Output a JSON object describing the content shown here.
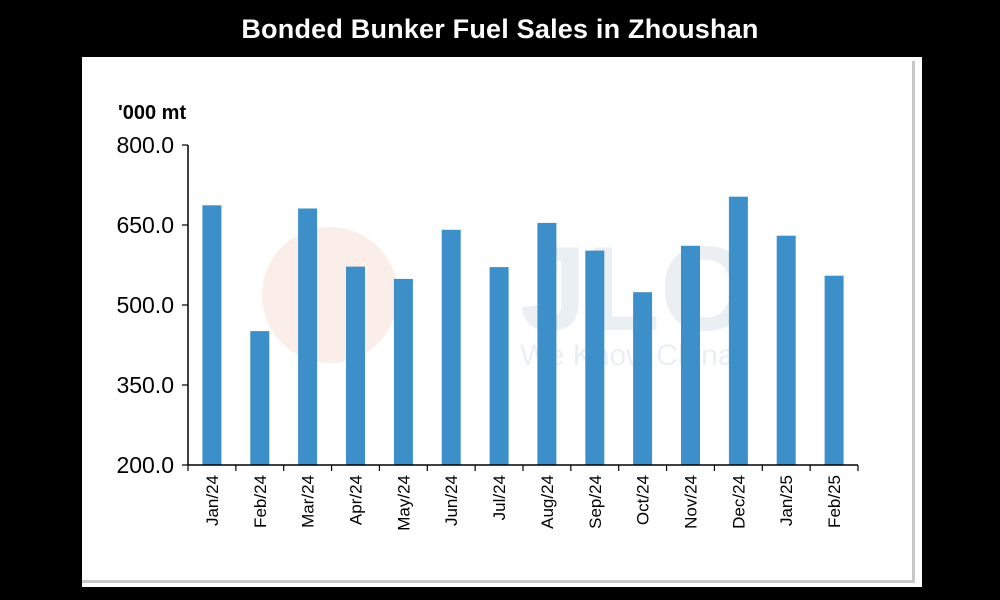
{
  "chart_data": {
    "type": "bar",
    "title": "Bonded Bunker Fuel Sales in Zhoushan",
    "unit_label": "'000 mt",
    "xlabel": "",
    "ylabel": "",
    "ylim": [
      200,
      800
    ],
    "yticks": [
      200,
      350,
      500,
      650,
      800
    ],
    "ytick_labels": [
      "200.0",
      "350.0",
      "500.0",
      "650.0",
      "800.0"
    ],
    "categories": [
      "Jan/24",
      "Feb/24",
      "Mar/24",
      "Apr/24",
      "May/24",
      "Jun/24",
      "Jul/24",
      "Aug/24",
      "Sep/24",
      "Oct/24",
      "Nov/24",
      "Dec/24",
      "Jan/25",
      "Feb/25"
    ],
    "values": [
      687,
      451,
      681,
      572,
      549,
      641,
      571,
      654,
      602,
      524,
      611,
      703,
      630,
      555
    ],
    "bar_color": "#3d8fc9",
    "grid": false,
    "legend": "none",
    "watermark": {
      "text": "JLC",
      "subtext": "We Know China"
    }
  }
}
